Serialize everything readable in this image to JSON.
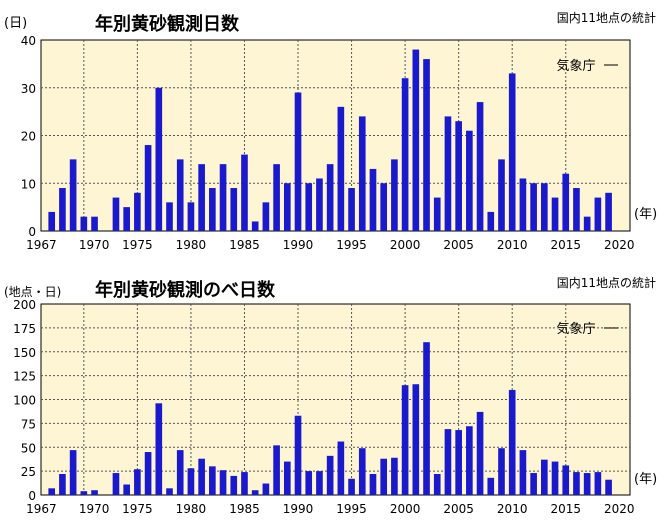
{
  "chart_data": [
    {
      "type": "bar",
      "title": "年別黄砂観測日数",
      "subtitle": "国内11地点の統計",
      "source": "気象庁",
      "ylabel": "(日)",
      "xlabel": "(年)",
      "ylim": [
        0,
        40
      ],
      "yticks": [
        0,
        10,
        20,
        30,
        40
      ],
      "xticks": [
        "1967",
        "1970",
        "1975",
        "1980",
        "1985",
        "1990",
        "1995",
        "2000",
        "2005",
        "2010",
        "2015",
        "2020"
      ],
      "grid": true,
      "bar_color": "#1a1acc",
      "plot_bg": "#fdf5d4",
      "x": [
        1967,
        1968,
        1969,
        1970,
        1971,
        1972,
        1973,
        1974,
        1975,
        1976,
        1977,
        1978,
        1979,
        1980,
        1981,
        1982,
        1983,
        1984,
        1985,
        1986,
        1987,
        1988,
        1989,
        1990,
        1991,
        1992,
        1993,
        1994,
        1995,
        1996,
        1997,
        1998,
        1999,
        2000,
        2001,
        2002,
        2003,
        2004,
        2005,
        2006,
        2007,
        2008,
        2009,
        2010,
        2011,
        2012,
        2013,
        2014,
        2015,
        2016,
        2017,
        2018,
        2019
      ],
      "values": [
        4,
        9,
        15,
        3,
        3,
        0,
        7,
        5,
        8,
        18,
        30,
        6,
        15,
        6,
        14,
        9,
        14,
        9,
        16,
        2,
        6,
        14,
        10,
        29,
        10,
        11,
        14,
        26,
        9,
        24,
        13,
        10,
        15,
        32,
        38,
        36,
        7,
        24,
        23,
        21,
        27,
        4,
        15,
        33,
        11,
        10,
        10,
        7,
        12,
        9,
        3,
        7,
        8
      ]
    },
    {
      "type": "bar",
      "title": "年別黄砂観測のべ日数",
      "subtitle": "国内11地点の統計",
      "source": "気象庁",
      "ylabel": "(地点・日)",
      "xlabel": "(年)",
      "ylim": [
        0,
        200
      ],
      "yticks": [
        0,
        25,
        50,
        75,
        100,
        125,
        150,
        175,
        200
      ],
      "xticks": [
        "1967",
        "1970",
        "1975",
        "1980",
        "1985",
        "1990",
        "1995",
        "2000",
        "2005",
        "2010",
        "2015",
        "2020"
      ],
      "grid": true,
      "bar_color": "#1a1acc",
      "plot_bg": "#fdf5d4",
      "x": [
        1967,
        1968,
        1969,
        1970,
        1971,
        1972,
        1973,
        1974,
        1975,
        1976,
        1977,
        1978,
        1979,
        1980,
        1981,
        1982,
        1983,
        1984,
        1985,
        1986,
        1987,
        1988,
        1989,
        1990,
        1991,
        1992,
        1993,
        1994,
        1995,
        1996,
        1997,
        1998,
        1999,
        2000,
        2001,
        2002,
        2003,
        2004,
        2005,
        2006,
        2007,
        2008,
        2009,
        2010,
        2011,
        2012,
        2013,
        2014,
        2015,
        2016,
        2017,
        2018,
        2019
      ],
      "values": [
        7,
        22,
        47,
        4,
        5,
        0,
        23,
        11,
        27,
        45,
        96,
        7,
        47,
        28,
        38,
        30,
        26,
        20,
        24,
        5,
        12,
        52,
        35,
        83,
        25,
        25,
        41,
        56,
        17,
        49,
        22,
        38,
        39,
        115,
        116,
        160,
        22,
        69,
        68,
        72,
        87,
        18,
        49,
        110,
        47,
        23,
        37,
        35,
        31,
        24,
        23,
        24,
        16
      ]
    }
  ]
}
